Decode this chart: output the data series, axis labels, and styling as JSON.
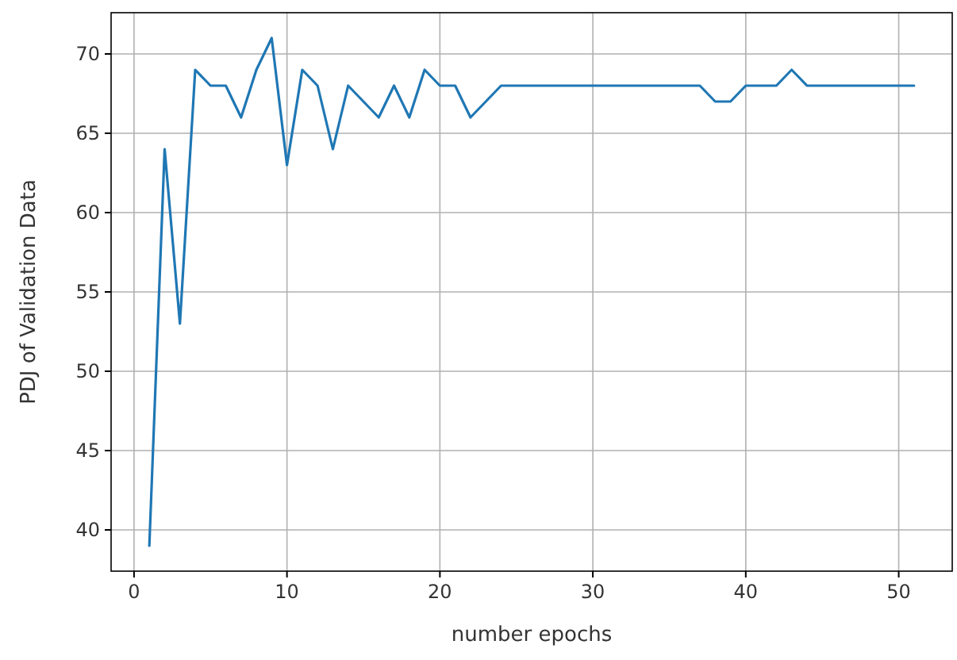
{
  "chart_data": {
    "type": "line",
    "xlabel": "number epochs",
    "ylabel": "PDJ of Validation Data",
    "x": [
      1,
      2,
      3,
      4,
      5,
      6,
      7,
      8,
      9,
      10,
      11,
      12,
      13,
      14,
      15,
      16,
      17,
      18,
      19,
      20,
      21,
      22,
      23,
      24,
      25,
      26,
      27,
      28,
      29,
      30,
      31,
      32,
      33,
      34,
      35,
      36,
      37,
      38,
      39,
      40,
      41,
      42,
      43,
      44,
      45,
      46,
      47,
      48,
      49,
      50,
      51
    ],
    "series": [
      {
        "color": "#1f77b4",
        "values": [
          39,
          64,
          53,
          69,
          68,
          68,
          66,
          69,
          71,
          63,
          69,
          68,
          64,
          68,
          67,
          66,
          68,
          66,
          69,
          68,
          68,
          66,
          67,
          68,
          68,
          68,
          68,
          68,
          68,
          68,
          68,
          68,
          68,
          68,
          68,
          68,
          68,
          67,
          67,
          68,
          68,
          68,
          69,
          68,
          68,
          68,
          68,
          68,
          68,
          68,
          68
        ]
      }
    ],
    "xlim": [
      -1.5,
      53.5
    ],
    "ylim": [
      37.4,
      72.6
    ],
    "xticks": [
      0,
      10,
      20,
      30,
      40,
      50
    ],
    "yticks": [
      40,
      45,
      50,
      55,
      60,
      65,
      70
    ],
    "grid": true,
    "line_style": "solid",
    "marker": "none"
  }
}
